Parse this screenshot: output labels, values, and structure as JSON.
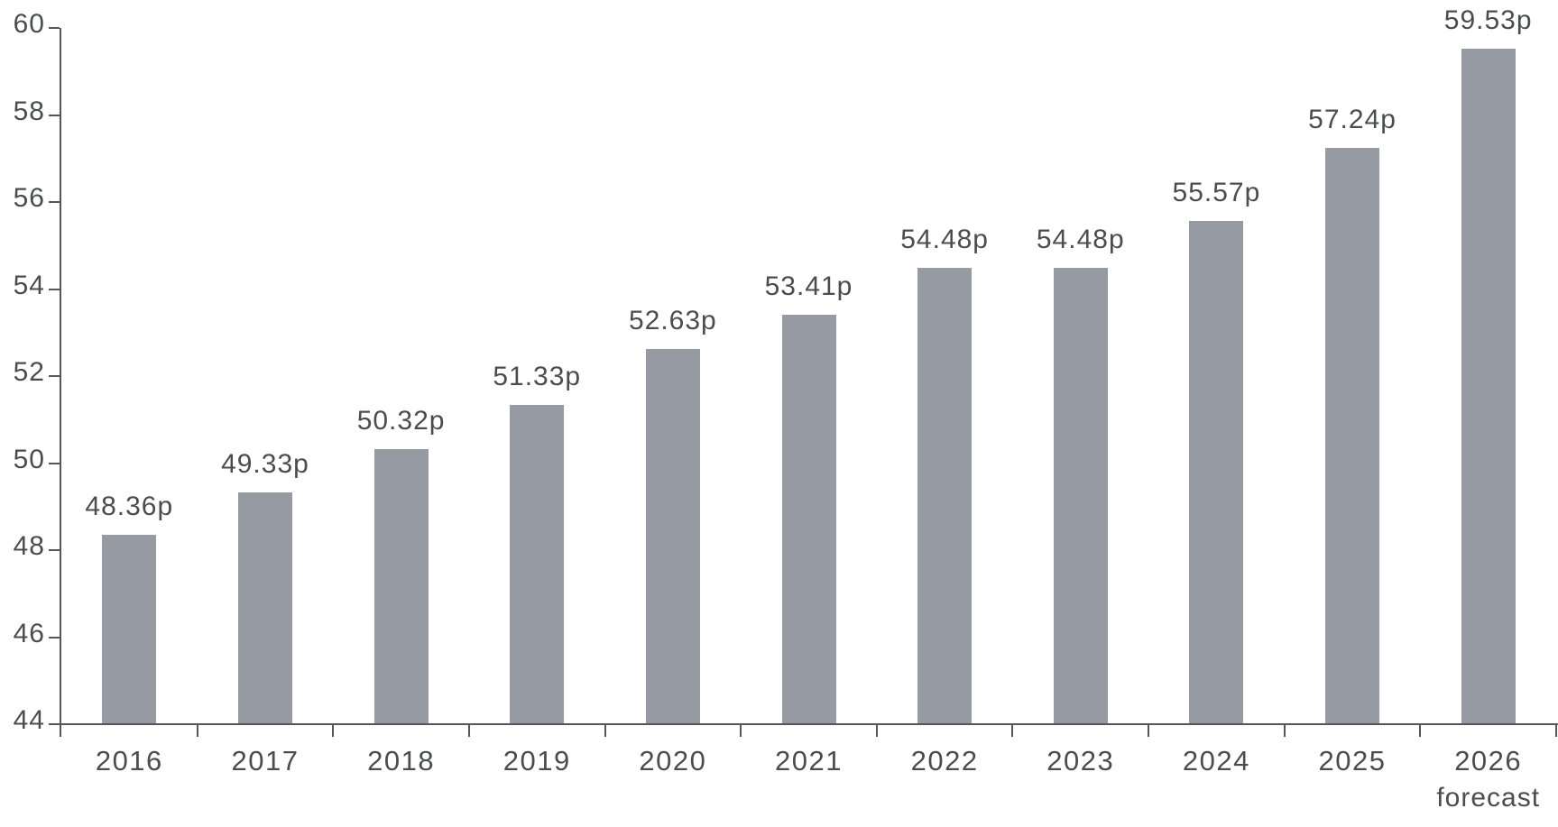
{
  "chart_data": {
    "type": "bar",
    "title": "",
    "categories": [
      "2016",
      "2017",
      "2018",
      "2019",
      "2020",
      "2021",
      "2022",
      "2023",
      "2024",
      "2025",
      "2026"
    ],
    "category_sublabels": [
      "",
      "",
      "",
      "",
      "",
      "",
      "",
      "",
      "",
      "",
      "forecast"
    ],
    "values": [
      48.36,
      49.33,
      50.32,
      51.33,
      52.63,
      53.41,
      54.48,
      54.48,
      55.57,
      57.24,
      59.53
    ],
    "value_labels": [
      "48.36p",
      "49.33p",
      "50.32p",
      "51.33p",
      "52.63p",
      "53.41p",
      "54.48p",
      "54.48p",
      "55.57p",
      "57.24p",
      "59.53p"
    ],
    "unit_suffix": "p",
    "ylim": [
      44,
      60
    ],
    "yticks": [
      44,
      46,
      48,
      50,
      52,
      54,
      56,
      58,
      60
    ],
    "xlabel": "",
    "ylabel": "",
    "grid": false,
    "legend": "none",
    "colors": {
      "bar_fill": "#969aa3",
      "text": "#4b4c4e",
      "axis": "#55565a",
      "background": "#ffffff"
    }
  }
}
